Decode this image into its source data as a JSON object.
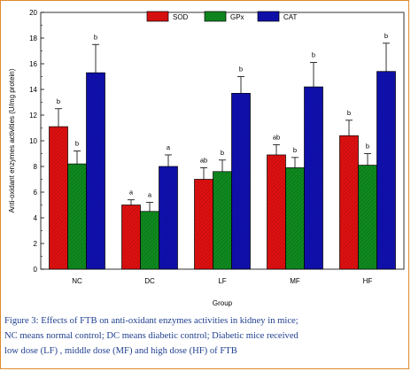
{
  "chart_data": {
    "type": "bar",
    "categories": [
      "NC",
      "DC",
      "LF",
      "MF",
      "HF"
    ],
    "series": [
      {
        "name": "SOD",
        "color": "#e01010",
        "values": [
          11.1,
          5.0,
          7.0,
          8.9,
          10.4
        ],
        "errors": [
          1.4,
          0.4,
          0.9,
          0.8,
          1.2
        ],
        "labels": [
          "b",
          "a",
          "ab",
          "ab",
          "b"
        ]
      },
      {
        "name": "GPx",
        "color": "#0f8a1f",
        "values": [
          8.2,
          4.5,
          7.6,
          7.9,
          8.1
        ],
        "errors": [
          1.0,
          0.7,
          0.9,
          0.8,
          0.9
        ],
        "labels": [
          "b",
          "a",
          "b",
          "b",
          "b"
        ]
      },
      {
        "name": "CAT",
        "color": "#1010b0",
        "values": [
          15.3,
          8.0,
          13.7,
          14.2,
          15.4
        ],
        "errors": [
          2.2,
          0.9,
          1.3,
          1.9,
          2.2
        ],
        "labels": [
          "b",
          "a",
          "b",
          "b",
          "b"
        ]
      }
    ],
    "xlabel": "Group",
    "ylabel": "Anti-oxidant enzymes activities (U/mg protein)",
    "ylim": [
      0,
      20
    ],
    "yticks": [
      "0",
      "2",
      "4",
      "6",
      "8",
      "10",
      "12",
      "14",
      "16",
      "18",
      "20"
    ],
    "legend_position": "top-center",
    "grid": false
  },
  "caption": {
    "lines": [
      "Figure 3: Effects of FTB on anti-oxidant enzymes activities in kidney in mice;",
      "NC means normal control; DC means diabetic control; Diabetic mice received",
      "low dose (LF) , middle dose (MF) and high dose (HF) of FTB"
    ],
    "color": "#1f3f8f"
  }
}
